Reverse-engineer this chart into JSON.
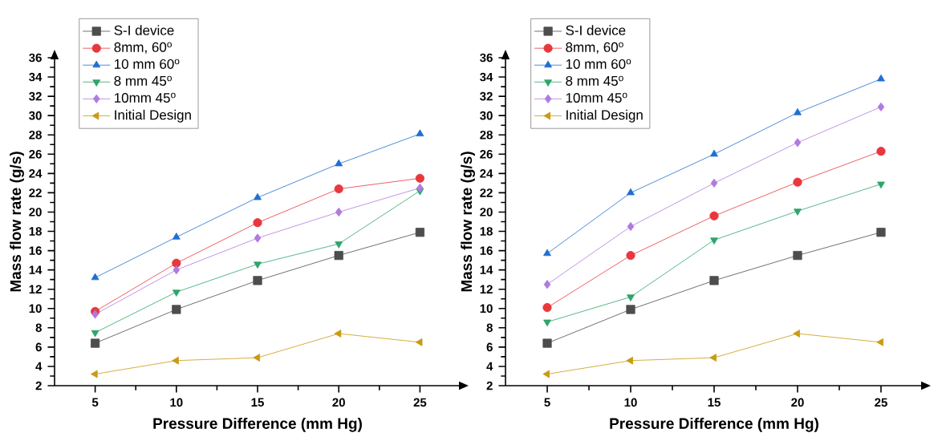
{
  "chart_data": [
    {
      "type": "line",
      "xlabel": "Pressure Difference (mm Hg)",
      "ylabel": "Mass flow rate (g/s)",
      "x": [
        5,
        10,
        15,
        20,
        25
      ],
      "xlim": [
        2.5,
        27.5
      ],
      "xticks": [
        5,
        10,
        15,
        20,
        25
      ],
      "ylim": [
        2,
        36
      ],
      "yticks": [
        2,
        4,
        6,
        8,
        10,
        12,
        14,
        16,
        18,
        20,
        22,
        24,
        26,
        28,
        30,
        32,
        34,
        36
      ],
      "grid": false,
      "legend": "top left",
      "series": [
        {
          "name": "S-I device",
          "color": "#4d4d4d",
          "marker": "square",
          "values": [
            6.4,
            9.9,
            12.9,
            15.5,
            17.9
          ]
        },
        {
          "name": "8mm, 60$^{o}$",
          "color": "#e8383d",
          "marker": "circle",
          "values": [
            9.7,
            14.7,
            18.9,
            22.4,
            23.5
          ]
        },
        {
          "name": "10 mm 60$^{o}$",
          "color": "#1f6fd1",
          "marker": "triangle",
          "values": [
            13.2,
            17.4,
            21.5,
            25.0,
            28.1
          ]
        },
        {
          "name": "8 mm 45$^{o}$",
          "color": "#2ea56a",
          "marker": "triangle-down",
          "values": [
            7.5,
            11.7,
            14.6,
            16.7,
            22.2
          ]
        },
        {
          "name": "10mm 45$^{o}$",
          "color": "#b07ae0",
          "marker": "diamond",
          "values": [
            9.4,
            14.0,
            17.3,
            20.0,
            22.5
          ]
        },
        {
          "name": "Initial Design",
          "color": "#c99a12",
          "marker": "triangle-left",
          "values": [
            3.2,
            4.6,
            4.9,
            7.4,
            6.5
          ]
        }
      ]
    },
    {
      "type": "line",
      "xlabel": "Pressure Difference (mm Hg)",
      "ylabel": "Mass flow rate (g/s)",
      "x": [
        5,
        10,
        15,
        20,
        25
      ],
      "xlim": [
        2.5,
        27.5
      ],
      "xticks": [
        5,
        10,
        15,
        20,
        25
      ],
      "ylim": [
        2,
        36
      ],
      "yticks": [
        2,
        4,
        6,
        8,
        10,
        12,
        14,
        16,
        18,
        20,
        22,
        24,
        26,
        28,
        30,
        32,
        34,
        36
      ],
      "grid": false,
      "legend": "top left",
      "series": [
        {
          "name": "S-I device",
          "color": "#4d4d4d",
          "marker": "square",
          "values": [
            6.4,
            9.9,
            12.9,
            15.5,
            17.9
          ]
        },
        {
          "name": "8mm, 60$^{o}$",
          "color": "#e8383d",
          "marker": "circle",
          "values": [
            10.1,
            15.5,
            19.6,
            23.1,
            26.3
          ]
        },
        {
          "name": "10 mm 60$^{o}$",
          "color": "#1f6fd1",
          "marker": "triangle",
          "values": [
            15.7,
            22.0,
            26.0,
            30.3,
            33.8
          ]
        },
        {
          "name": "8 mm 45$^{o}$",
          "color": "#2ea56a",
          "marker": "triangle-down",
          "values": [
            8.6,
            11.2,
            17.1,
            20.1,
            22.9
          ]
        },
        {
          "name": "10mm 45$^{o}$",
          "color": "#b07ae0",
          "marker": "diamond",
          "values": [
            12.5,
            18.5,
            23.0,
            27.2,
            30.9
          ]
        },
        {
          "name": "Initial Design",
          "color": "#c99a12",
          "marker": "triangle-left",
          "values": [
            3.2,
            4.6,
            4.9,
            7.4,
            6.5
          ]
        }
      ]
    }
  ]
}
